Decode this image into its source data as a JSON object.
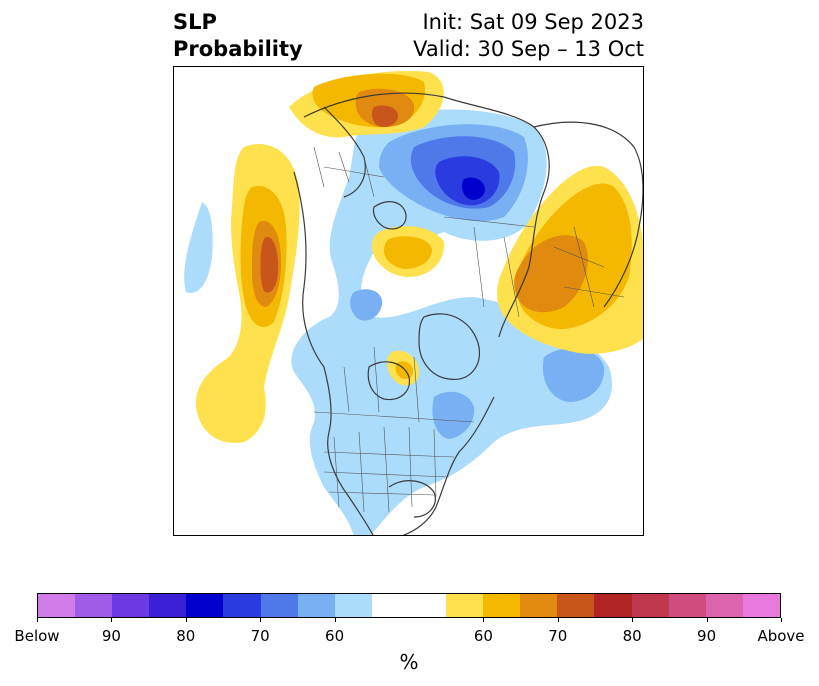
{
  "title": {
    "left_line1": "SLP",
    "left_line2": "Probability",
    "right_line1": "Init: Sat 09 Sep 2023",
    "right_line2": "Valid: 30 Sep – 13 Oct"
  },
  "colorbar": {
    "colors": [
      "#d17ce8",
      "#a05ce6",
      "#6c3ae0",
      "#3a1fd6",
      "#0000cc",
      "#2a3ce0",
      "#4f78e8",
      "#78b0f3",
      "#acdcfb",
      "#ffffff",
      "#ffffff",
      "#ffe04d",
      "#f5b800",
      "#e08a10",
      "#c8561a",
      "#b02424",
      "#c0384e",
      "#d04c7e",
      "#dc64ac",
      "#e878dc"
    ],
    "tick_labels": [
      "Below",
      "90",
      "80",
      "70",
      "60",
      "60",
      "70",
      "80",
      "90",
      "Above"
    ],
    "unit": "%"
  },
  "map": {
    "colors": {
      "below_60": "#acdcfb",
      "below_70": "#78b0f3",
      "below_80": "#4f78e8",
      "below_90": "#2a3ce0",
      "below_95": "#0000cc",
      "above_60": "#ffe04d",
      "above_65": "#f5b800",
      "above_70": "#e08a10",
      "above_75": "#c8561a",
      "coast": "#3a3a3a"
    }
  }
}
